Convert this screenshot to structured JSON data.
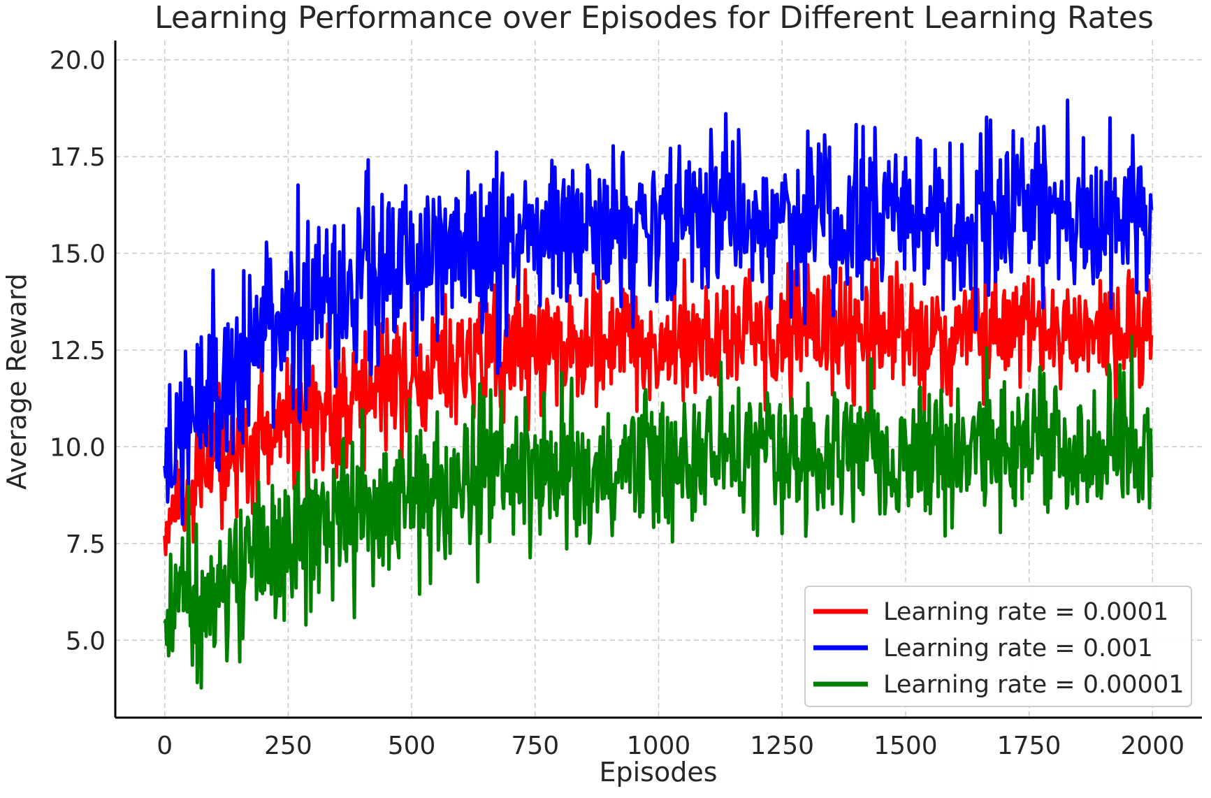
{
  "chart_data": {
    "type": "line",
    "title": "Learning Performance over Episodes for Different Learning Rates",
    "xlabel": "Episodes",
    "ylabel": "Average Reward",
    "xlim": [
      -100,
      2100
    ],
    "ylim": [
      3.0,
      20.5
    ],
    "x_ticks": [
      0,
      250,
      500,
      750,
      1000,
      1250,
      1500,
      1750,
      2000
    ],
    "x_tick_labels": [
      "0",
      "250",
      "500",
      "750",
      "1000",
      "1250",
      "1500",
      "1750",
      "2000"
    ],
    "y_ticks": [
      5.0,
      7.5,
      10.0,
      12.5,
      15.0,
      17.5,
      20.0
    ],
    "y_tick_labels": [
      "5.0",
      "7.5",
      "10.0",
      "12.5",
      "15.0",
      "17.5",
      "20.0"
    ],
    "grid": true,
    "legend_position": "lower-right",
    "episodes": 2000,
    "series": [
      {
        "name": "Learning rate = 0.0001",
        "color": "#ff0000",
        "trend": {
          "start": 8.2,
          "plateau": 13.0,
          "tau": 350
        },
        "noise_sd": 0.85,
        "observed_min": 6.7,
        "observed_max": 15.1
      },
      {
        "name": "Learning rate = 0.001",
        "color": "#0000ff",
        "trend": {
          "start": 9.5,
          "plateau": 16.0,
          "tau": 300
        },
        "noise_sd": 1.05,
        "observed_min": 8.0,
        "observed_max": 19.8
      },
      {
        "name": "Learning rate = 0.00001",
        "color": "#008000",
        "trend": {
          "start": 5.6,
          "plateau": 10.0,
          "tau": 400
        },
        "noise_sd": 0.95,
        "observed_min": 3.4,
        "observed_max": 13.0
      }
    ]
  }
}
